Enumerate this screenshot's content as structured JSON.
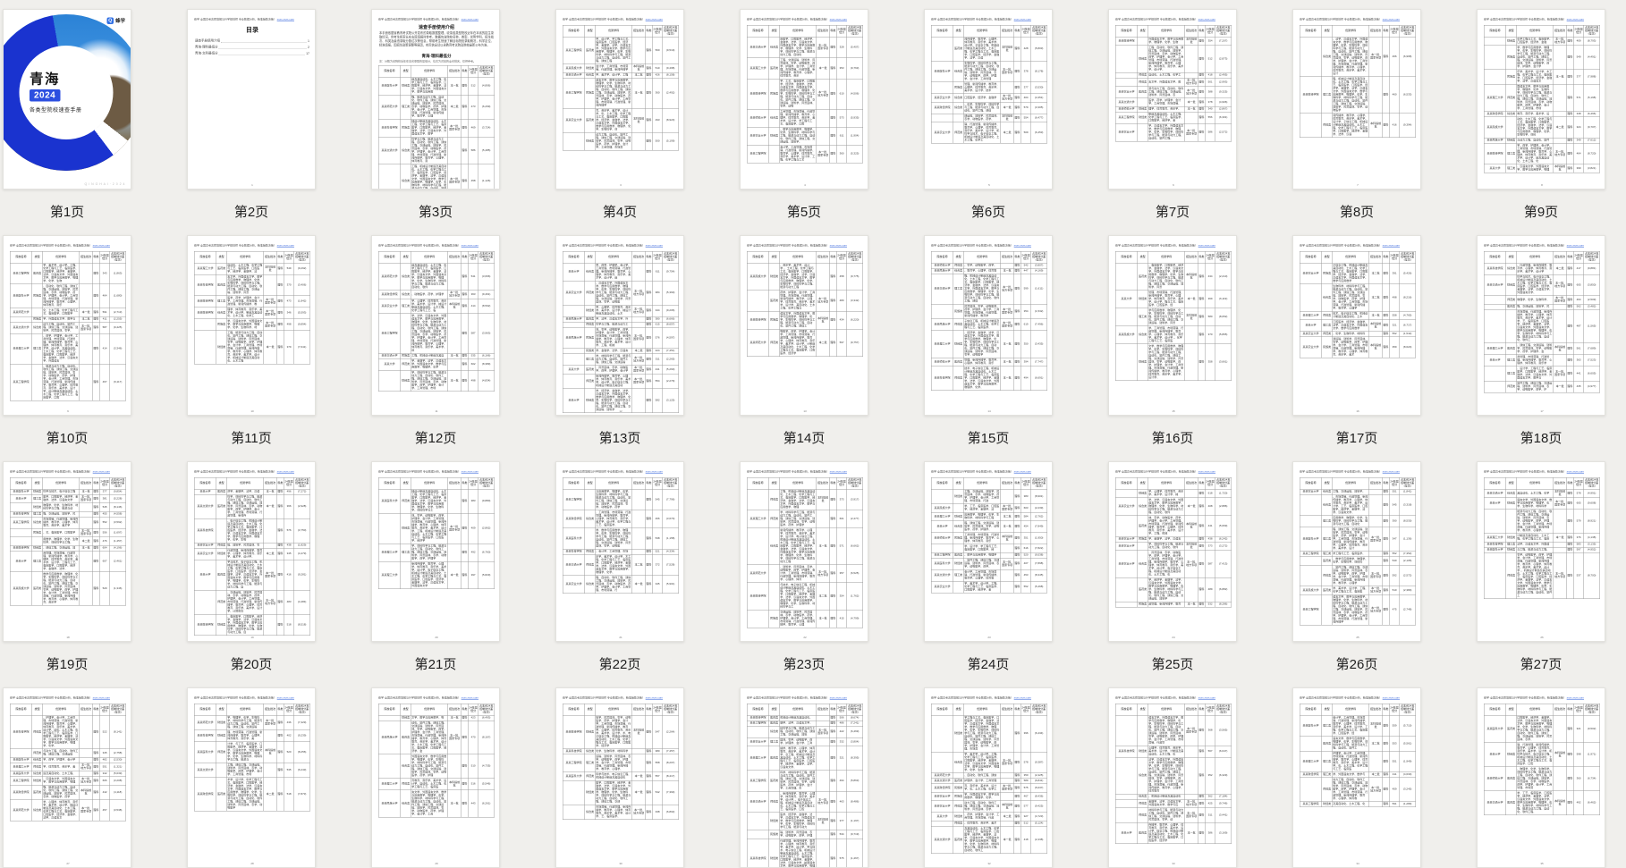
{
  "app": {
    "background": "#f0efec"
  },
  "grid": {
    "columns": 9,
    "visible_thumbnails": 36,
    "labeled_pages": 27
  },
  "labels": [
    "第1页",
    "第2页",
    "第3页",
    "第4页",
    "第5页",
    "第6页",
    "第7页",
    "第8页",
    "第9页",
    "第10页",
    "第11页",
    "第12页",
    "第13页",
    "第14页",
    "第15页",
    "第16页",
    "第17页",
    "第18页",
    "第19页",
    "第20页",
    "第21页",
    "第22页",
    "第23页",
    "第24页",
    "第25页",
    "第26页",
    "第27页"
  ],
  "cover": {
    "title": "青海",
    "year_badge": "2024",
    "subtitle": "各类型院校速查手册",
    "brand_name": "蜂学",
    "brand_initial": "Q",
    "footer_text": "Q I N G H A I · 2 0 2 4",
    "colors": {
      "ring_blue": "#1a33cf",
      "badge_blue": "#2c4fe0",
      "logo_blue": "#2f6fe4",
      "logo_green": "#3bbf6e"
    }
  },
  "toc": {
    "heading": "目录",
    "entries": [
      {
        "title": "速查手册使用介绍",
        "page": "1"
      },
      {
        "title": "青海·理科最低分",
        "page": "2"
      },
      {
        "title": "青海·文科最低分",
        "page": "17"
      }
    ],
    "page_number": "1"
  },
  "intro": {
    "title": "速查手册使用介绍",
    "paragraph": "本手册依据省教育考试院公开发布的录取数据整理，收录各类型院校近年在本省的招生录取情况，供考生和家长在志愿填报时参考。数据包含院校名称、类型、优势学科、招生批次、科类及最低录取分数位次等信息，帮助考生快速了解目标院校录取概况，科学定位、精准填报。因招生政策调整等原因，实际信息请以省教育考试院及院校最新公布为准。",
    "subtitle": "青海·理科最低分",
    "note": "注：分数为该院校近年在本省录取的最低分，位次为对应的全省排名，仅供参考。"
  },
  "table_page": {
    "header_line": "蜂学·全国高考志愿填报与升学规划师 专业数据分析，精准辅助决策！",
    "header_link": "xxxx.xxxx.com",
    "columns": [
      "院校名称",
      "类型",
      "优势学科",
      "招生批次",
      "科类",
      "24年最低分",
      "占本省24年控制线分差(位次)"
    ]
  },
  "filler": {
    "college_names": [
      "某某大学",
      "某某理工大学",
      "某某师范大学",
      "某某财经学院",
      "某某医科大学",
      "某某民族大学",
      "某某科技学院",
      "某某交通大学",
      "某某农业大学",
      "某某工程学院"
    ],
    "types": [
      "综合类",
      "理工类",
      "师范类",
      "医药类",
      "财经类",
      "民族类"
    ],
    "batches": [
      "本一批",
      "本科提前批",
      "本一批,国家专项",
      "本一批,地方专项",
      "本二批"
    ],
    "science_label": "理科",
    "majors_text": "计算机科学与技术、电子信息工程、机械设计制造及其自动化、土木工程、化学工程与工艺、临床医学、口腔医学、经济学、金融学、法学、汉语言文学、外国语言文学、数学与应用数学、物理学、化学、生物科学、材料科学与工程、能源与动力工程、自动化、软件工程、通信工程、交通运输、建筑学、风景园林、农学、动物医学、药学、护理学、会计学、工商管理、市场营销、行政管理、新闻传播学、教育学、心理学、体育教育、音乐学、美术学、设计学、"
  }
}
